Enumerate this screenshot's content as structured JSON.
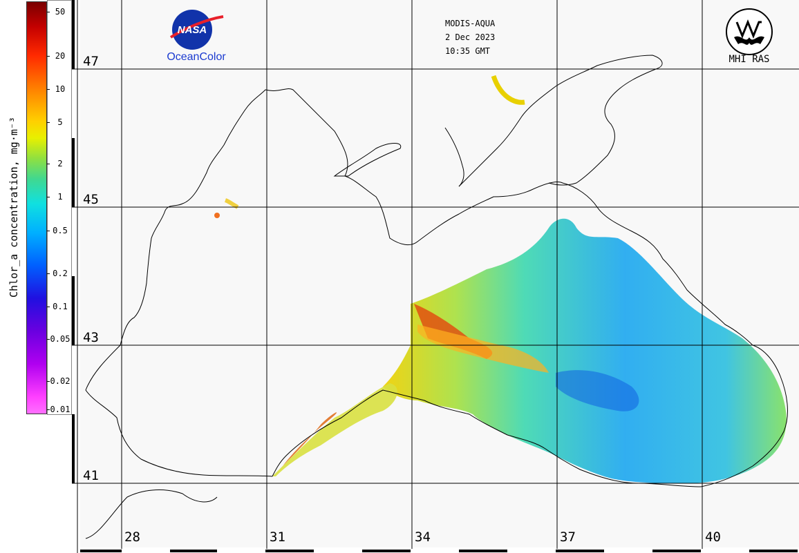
{
  "colorbar": {
    "title": "Chlor_a concentration, mg·m⁻³",
    "ticks": [
      "50",
      "20",
      "10",
      "5",
      "2",
      "1",
      "0.5",
      "0.2",
      "0.1",
      "0.05",
      "0.02",
      "0.01"
    ]
  },
  "header": {
    "sensor": "MODIS-AQUA",
    "date": "2 Dec 2023",
    "time": "10:35 GMT"
  },
  "logos": {
    "nasa_word": "NASA",
    "oceancolor": "OceanColor",
    "mhi": "MHI RAS"
  },
  "map": {
    "latitudes": [
      "47",
      "45",
      "43",
      "41"
    ],
    "longitudes": [
      "28",
      "31",
      "34",
      "37",
      "40"
    ]
  }
}
